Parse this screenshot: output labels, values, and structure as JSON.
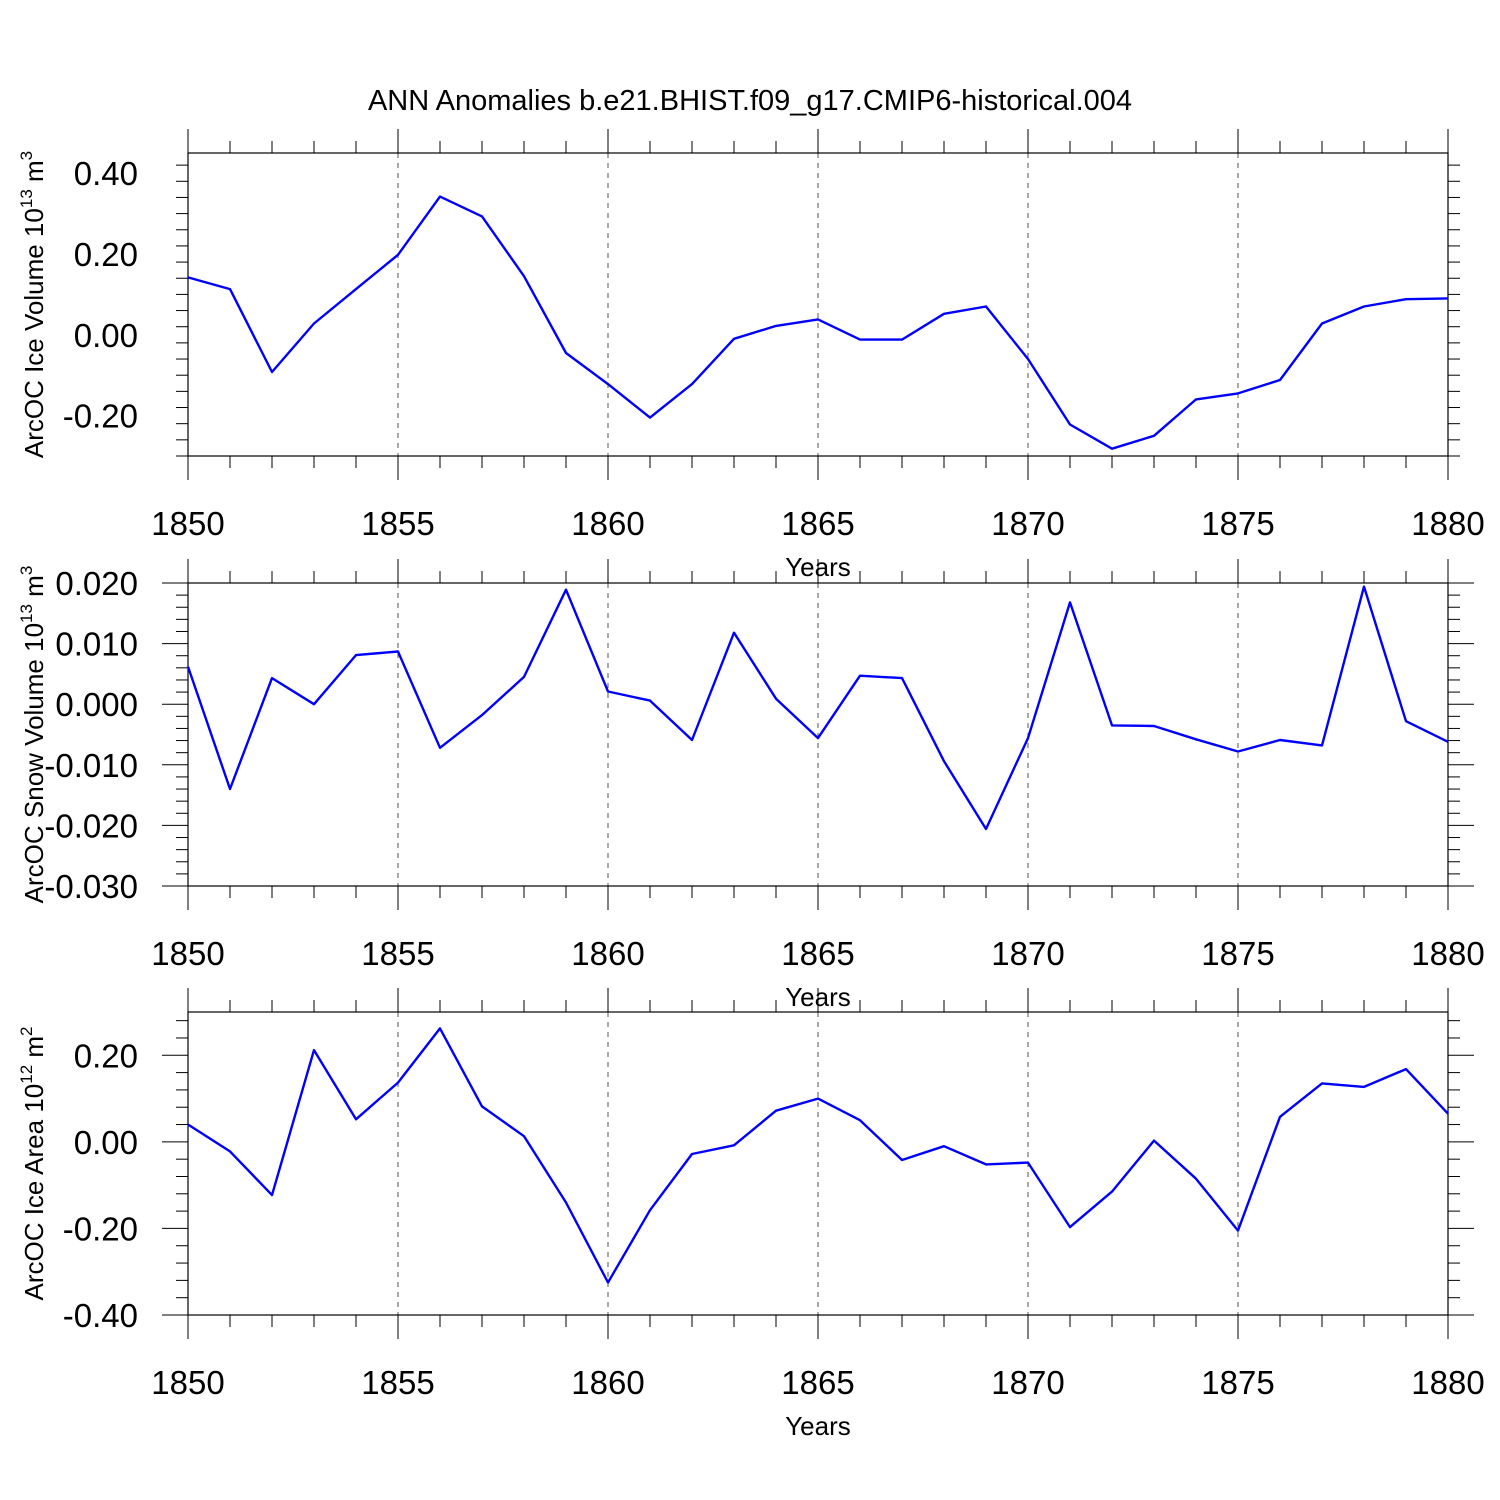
{
  "title": "ANN Anomalies b.e21.BHIST.f09_g17.CMIP6-historical.004",
  "colors": {
    "line": "#0000ff",
    "frame": "#000000",
    "grid": "#555555"
  },
  "chart_data": [
    {
      "type": "line",
      "ylabel": {
        "text": "ArcOC Ice Volume 10",
        "exp": "13",
        "unit": " m",
        "unit_exp": "3"
      },
      "xlabel": "Years",
      "xlim": [
        1850,
        1880
      ],
      "ylim": [
        -0.3,
        0.45
      ],
      "xticks": [
        1850,
        1855,
        1860,
        1865,
        1870,
        1875,
        1880
      ],
      "xtick_labels": [
        "1850",
        "1855",
        "1860",
        "1865",
        "1870",
        "1875",
        "1880"
      ],
      "yticks": [
        0.4,
        0.2,
        0.0,
        -0.2
      ],
      "ytick_labels": [
        "0.40",
        "0.20",
        "0.00",
        "-0.20"
      ],
      "grid": "vertical dashed at major x ticks",
      "x": [
        1850,
        1851,
        1852,
        1853,
        1854,
        1855,
        1856,
        1857,
        1858,
        1859,
        1860,
        1861,
        1862,
        1863,
        1864,
        1865,
        1866,
        1867,
        1868,
        1869,
        1870,
        1871,
        1872,
        1873,
        1874,
        1875,
        1876,
        1877,
        1878,
        1879,
        1880
      ],
      "values": [
        0.142,
        0.113,
        -0.092,
        0.028,
        0.113,
        0.198,
        0.342,
        0.293,
        0.145,
        -0.045,
        -0.122,
        -0.205,
        -0.122,
        -0.01,
        0.022,
        0.038,
        -0.012,
        -0.012,
        0.052,
        0.07,
        -0.06,
        -0.222,
        -0.282,
        -0.25,
        -0.16,
        -0.145,
        -0.112,
        0.028,
        0.07,
        0.088,
        0.09
      ]
    },
    {
      "type": "line",
      "ylabel": {
        "text": "ArcOC Snow Volume 10",
        "exp": "13",
        "unit": " m",
        "unit_exp": "3"
      },
      "xlabel": "Years",
      "xlim": [
        1850,
        1880
      ],
      "ylim": [
        -0.03,
        0.02
      ],
      "xticks": [
        1850,
        1855,
        1860,
        1865,
        1870,
        1875,
        1880
      ],
      "xtick_labels": [
        "1850",
        "1855",
        "1860",
        "1865",
        "1870",
        "1875",
        "1880"
      ],
      "yticks": [
        0.02,
        0.01,
        0.0,
        -0.01,
        -0.02,
        -0.03
      ],
      "ytick_labels": [
        "0.020",
        "0.010",
        "0.000",
        "-0.010",
        "-0.020",
        "-0.030"
      ],
      "grid": "vertical dashed at major x ticks",
      "x": [
        1850,
        1851,
        1852,
        1853,
        1854,
        1855,
        1856,
        1857,
        1858,
        1859,
        1860,
        1861,
        1862,
        1863,
        1864,
        1865,
        1866,
        1867,
        1868,
        1869,
        1870,
        1871,
        1872,
        1873,
        1874,
        1875,
        1876,
        1877,
        1878,
        1879,
        1880
      ],
      "values": [
        0.0062,
        -0.014,
        0.0043,
        0.0,
        0.0081,
        0.0087,
        -0.0072,
        -0.0018,
        0.0045,
        0.0189,
        0.0021,
        0.0006,
        -0.0059,
        0.0118,
        0.0009,
        -0.0056,
        0.0047,
        0.0043,
        -0.0094,
        -0.0206,
        -0.0056,
        0.0168,
        -0.0035,
        -0.0036,
        -0.0058,
        -0.0078,
        -0.0059,
        -0.0068,
        0.0194,
        -0.0028,
        -0.0062
      ]
    },
    {
      "type": "line",
      "ylabel": {
        "text": "ArcOC Ice Area 10",
        "exp": "12",
        "unit": " m",
        "unit_exp": "2"
      },
      "xlabel": "Years",
      "xlim": [
        1850,
        1880
      ],
      "ylim": [
        -0.4,
        0.3
      ],
      "xticks": [
        1850,
        1855,
        1860,
        1865,
        1870,
        1875,
        1880
      ],
      "xtick_labels": [
        "1850",
        "1855",
        "1860",
        "1865",
        "1870",
        "1875",
        "1880"
      ],
      "yticks": [
        0.2,
        0.0,
        -0.2,
        -0.4
      ],
      "ytick_labels": [
        "0.20",
        "0.00",
        "-0.20",
        "-0.40"
      ],
      "grid": "vertical dashed at major x ticks",
      "x": [
        1850,
        1851,
        1852,
        1853,
        1854,
        1855,
        1856,
        1857,
        1858,
        1859,
        1860,
        1861,
        1862,
        1863,
        1864,
        1865,
        1866,
        1867,
        1868,
        1869,
        1870,
        1871,
        1872,
        1873,
        1874,
        1875,
        1876,
        1877,
        1878,
        1879,
        1880
      ],
      "values": [
        0.04,
        -0.022,
        -0.123,
        0.212,
        0.052,
        0.137,
        0.262,
        0.082,
        0.013,
        -0.14,
        -0.325,
        -0.158,
        -0.028,
        -0.008,
        0.072,
        0.1,
        0.05,
        -0.042,
        -0.01,
        -0.052,
        -0.048,
        -0.197,
        -0.115,
        0.003,
        -0.085,
        -0.205,
        0.058,
        0.135,
        0.127,
        0.168,
        0.065
      ]
    }
  ]
}
